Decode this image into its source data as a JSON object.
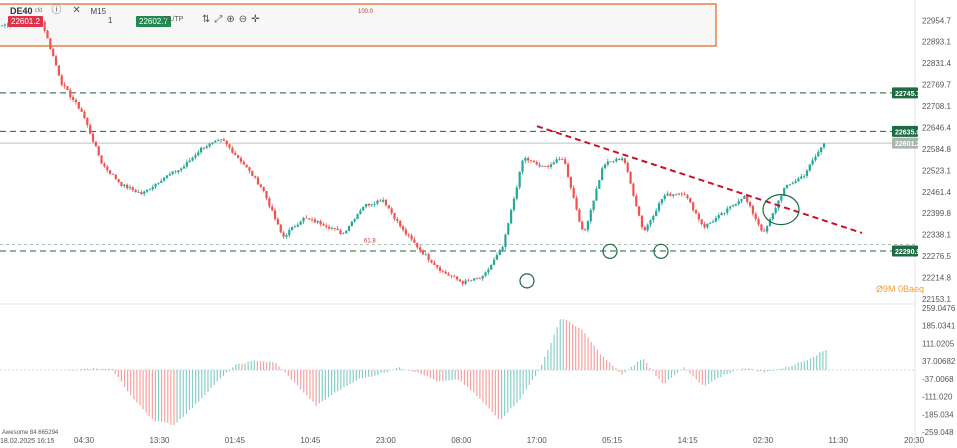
{
  "toolbar": {
    "symbol": "DE40",
    "symbol_sub": "cfd",
    "timeframe_label": "M15",
    "bid_price": "22601.2",
    "ask_price": "22602.7",
    "quantity": "1",
    "sltp_label": "SL/TP",
    "icons": [
      "info-icon",
      "close-icon",
      "adjust-icon",
      "expand-icon",
      "zoom-in-icon",
      "zoom-out-icon",
      "crosshair-icon"
    ]
  },
  "colors": {
    "bull": "#26a69a",
    "bear": "#ef5350",
    "level_line": "#1f5f3f",
    "trend_line": "#c8102e",
    "box_border": "#e8601c",
    "circle": "#1f6b44",
    "price_tag_bg": "#1f6b44",
    "current_tag_bg": "#a9b7b0",
    "watermark": "#f0a030"
  },
  "watermark": "Ø9M 0Baeq",
  "box_label": "100.0",
  "fib_label": "61.8",
  "indicator_label": "Awesome 84.665294",
  "date_start_label": "18.02.2025 16:15",
  "chart_data": {
    "type": "candlestick",
    "symbol": "DE40",
    "timeframe": "M15",
    "price_axis": {
      "ticks": [
        "22954.7",
        "22893.1",
        "22831.4",
        "22769.7",
        "22708.1",
        "22646.4",
        "22584.8",
        "22523.1",
        "22461.4",
        "22399.8",
        "22338.1",
        "22276.5",
        "22214.8",
        "22153.1"
      ],
      "range": [
        22150,
        22990
      ]
    },
    "price_tags": [
      {
        "label": "22745.7",
        "value": 22745.7,
        "style": "dashed"
      },
      {
        "label": "22635.0",
        "value": 22635.0,
        "style": "dashed"
      },
      {
        "label": "22601.2",
        "value": 22601.2,
        "style": "current"
      },
      {
        "label": "22290.9",
        "value": 22290.9,
        "style": "dashed"
      }
    ],
    "extra_levels": [
      22310.0
    ],
    "time_axis": {
      "labels": [
        "04:30",
        "13:30",
        "01:45",
        "10:45",
        "23:00",
        "08:00",
        "17:00",
        "05:15",
        "14:15",
        "02:30",
        "11:30",
        "20:30"
      ]
    },
    "key_points": [
      {
        "value": 22940
      },
      {
        "value": 22955
      },
      {
        "value": 22950
      },
      {
        "value": 22770
      },
      {
        "value": 22690
      },
      {
        "value": 22540
      },
      {
        "value": 22480
      },
      {
        "value": 22455
      },
      {
        "value": 22500
      },
      {
        "value": 22530
      },
      {
        "value": 22590
      },
      {
        "value": 22610
      },
      {
        "value": 22545
      },
      {
        "value": 22470
      },
      {
        "value": 22330
      },
      {
        "value": 22385
      },
      {
        "value": 22370
      },
      {
        "value": 22340
      },
      {
        "value": 22420
      },
      {
        "value": 22440
      },
      {
        "value": 22350
      },
      {
        "value": 22285
      },
      {
        "value": 22230
      },
      {
        "value": 22200
      },
      {
        "value": 22215
      },
      {
        "value": 22305
      },
      {
        "value": 22560
      },
      {
        "value": 22530
      },
      {
        "value": 22560
      },
      {
        "value": 22335
      },
      {
        "value": 22540
      },
      {
        "value": 22560
      },
      {
        "value": 22345
      },
      {
        "value": 22450
      },
      {
        "value": 22460
      },
      {
        "value": 22360
      },
      {
        "value": 22400
      },
      {
        "value": 22450
      },
      {
        "value": 22340
      },
      {
        "value": 22470
      },
      {
        "value": 22510
      },
      {
        "value": 22601.2
      }
    ],
    "trendline": {
      "from": 22650,
      "to": 22343
    },
    "indicator": {
      "name": "Awesome",
      "value": "84.665294",
      "axis_ticks": [
        "259.0476",
        "185.0341",
        "111.0205",
        "37.00682",
        "-37.0068",
        "-111.020",
        "-185.034",
        "-259.048"
      ],
      "range": [
        -259.048,
        259.0476
      ],
      "key_points": [
        {
          "value": 0
        },
        {
          "value": 5
        },
        {
          "value": 2
        },
        {
          "value": -120
        },
        {
          "value": -210
        },
        {
          "value": -230
        },
        {
          "value": -150
        },
        {
          "value": -60
        },
        {
          "value": 20
        },
        {
          "value": 40
        },
        {
          "value": 30
        },
        {
          "value": -60
        },
        {
          "value": -150
        },
        {
          "value": -90
        },
        {
          "value": -40
        },
        {
          "value": -20
        },
        {
          "value": 10
        },
        {
          "value": -10
        },
        {
          "value": -50
        },
        {
          "value": -40
        },
        {
          "value": -120
        },
        {
          "value": -210
        },
        {
          "value": -120
        },
        {
          "value": 10
        },
        {
          "value": 220
        },
        {
          "value": 170
        },
        {
          "value": 60
        },
        {
          "value": -20
        },
        {
          "value": 50
        },
        {
          "value": -60
        },
        {
          "value": 10
        },
        {
          "value": -70
        },
        {
          "value": -20
        },
        {
          "value": 10
        },
        {
          "value": -10
        },
        {
          "value": 10
        },
        {
          "value": 40
        },
        {
          "value": 84.665294
        }
      ]
    },
    "annotations": {
      "circles": [
        {
          "value": 22205
        },
        {
          "value": 22290
        },
        {
          "value": 22290
        },
        {
          "value": 22410
        }
      ],
      "box": {
        "label": "100.0"
      },
      "fib_label": "61.8"
    }
  }
}
